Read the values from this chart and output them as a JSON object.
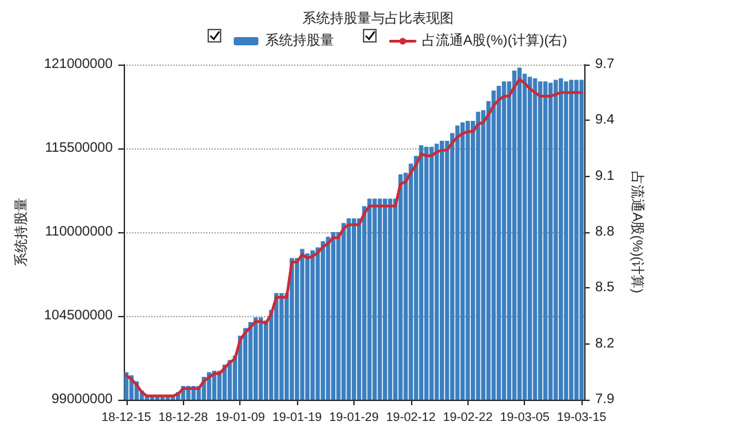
{
  "chart_data": {
    "type": "bar",
    "title": "系统持股量与占比表现图",
    "ylabel": "系统持股量",
    "y2label": "占流通A股(%)(计算)",
    "categories": [
      "18-12-15",
      null,
      null,
      null,
      null,
      null,
      null,
      null,
      null,
      null,
      null,
      "18-12-28",
      null,
      null,
      null,
      null,
      null,
      null,
      null,
      null,
      null,
      null,
      "19-01-09",
      null,
      null,
      null,
      null,
      null,
      null,
      null,
      null,
      null,
      null,
      "19-01-19",
      null,
      null,
      null,
      null,
      null,
      null,
      null,
      null,
      null,
      null,
      "19-01-29",
      null,
      null,
      null,
      null,
      null,
      null,
      null,
      null,
      null,
      null,
      "19-02-12",
      null,
      null,
      null,
      null,
      null,
      null,
      null,
      null,
      null,
      null,
      "19-02-22",
      null,
      null,
      null,
      null,
      null,
      null,
      null,
      null,
      null,
      null,
      "19-03-05",
      null,
      null,
      null,
      null,
      null,
      null,
      null,
      null,
      null,
      null,
      "19-03-15"
    ],
    "series": [
      {
        "name": "系统持股量",
        "color": "#3b7fc0",
        "values": [
          100800000,
          100600000,
          100200000,
          99600000,
          99300000,
          99300000,
          99300000,
          99300000,
          99300000,
          99300000,
          99500000,
          99900000,
          99900000,
          99900000,
          99900000,
          100500000,
          100800000,
          100900000,
          100900000,
          101300000,
          101600000,
          101900000,
          103200000,
          103700000,
          104100000,
          104400000,
          104400000,
          104200000,
          104900000,
          106000000,
          106000000,
          106000000,
          108300000,
          108300000,
          108900000,
          108600000,
          108800000,
          109000000,
          109400000,
          109700000,
          110000000,
          110000000,
          110600000,
          110900000,
          110900000,
          110900000,
          111700000,
          112200000,
          112200000,
          112200000,
          112200000,
          112200000,
          112200000,
          113800000,
          113900000,
          114500000,
          115000000,
          115700000,
          115600000,
          115600000,
          115800000,
          116000000,
          116000000,
          116500000,
          117000000,
          117200000,
          117300000,
          117300000,
          117900000,
          118000000,
          118600000,
          119300000,
          119600000,
          119900000,
          119900000,
          120600000,
          120800000,
          120400000,
          120200000,
          120100000,
          119900000,
          119900000,
          119800000,
          120000000,
          120100000,
          119900000,
          120000000,
          120000000,
          120000000
        ]
      },
      {
        "name": "占流通A股(%)(计算)(右)",
        "type": "line",
        "axis": "y2",
        "color": "#cc2a36",
        "values": [
          8.03,
          8.01,
          7.98,
          7.94,
          7.92,
          7.92,
          7.92,
          7.92,
          7.92,
          7.92,
          7.93,
          7.96,
          7.96,
          7.96,
          7.96,
          8.0,
          8.02,
          8.04,
          8.04,
          8.07,
          8.1,
          8.12,
          8.22,
          8.26,
          8.29,
          8.32,
          8.32,
          8.31,
          8.36,
          8.45,
          8.45,
          8.45,
          8.64,
          8.64,
          8.68,
          8.66,
          8.67,
          8.69,
          8.72,
          8.74,
          8.77,
          8.77,
          8.82,
          8.84,
          8.84,
          8.84,
          8.9,
          8.94,
          8.94,
          8.94,
          8.94,
          8.94,
          8.94,
          9.06,
          9.07,
          9.12,
          9.16,
          9.22,
          9.21,
          9.21,
          9.23,
          9.24,
          9.24,
          9.28,
          9.31,
          9.33,
          9.34,
          9.34,
          9.38,
          9.39,
          9.43,
          9.48,
          9.51,
          9.53,
          9.53,
          9.58,
          9.62,
          9.6,
          9.57,
          9.55,
          9.53,
          9.53,
          9.53,
          9.54,
          9.55,
          9.55,
          9.55,
          9.55,
          9.55
        ]
      }
    ],
    "ylim": [
      99000000,
      121000000
    ],
    "yticks": [
      99000000,
      104500000,
      110000000,
      115500000,
      121000000
    ],
    "y2lim": [
      7.9,
      9.7
    ],
    "y2ticks": [
      7.9,
      8.2,
      8.5,
      8.8,
      9.1,
      9.4,
      9.7
    ],
    "grid": "y",
    "legend": "top",
    "marker": "none",
    "line_style": "solid"
  }
}
